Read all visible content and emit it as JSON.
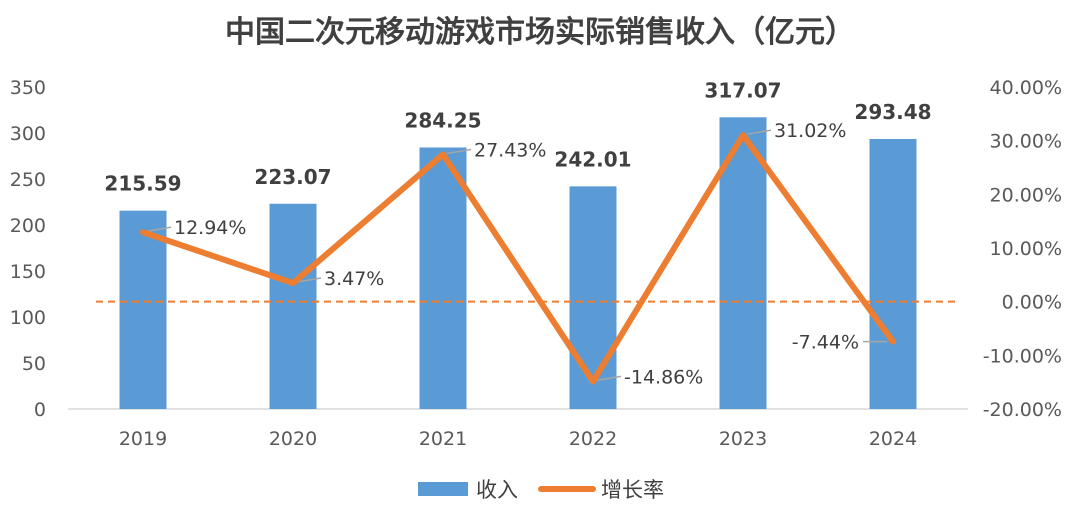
{
  "chart_data": {
    "type": "bar+line",
    "title": "中国二次元移动游戏市场实际销售收入（亿元）",
    "categories": [
      "2019",
      "2020",
      "2021",
      "2022",
      "2023",
      "2024"
    ],
    "series": [
      {
        "name": "收入",
        "type": "bar",
        "axis": "left",
        "values": [
          215.59,
          223.07,
          284.25,
          242.01,
          317.07,
          293.48
        ],
        "labels": [
          "215.59",
          "223.07",
          "284.25",
          "242.01",
          "317.07",
          "293.48"
        ],
        "color": "#5B9BD5"
      },
      {
        "name": "增长率",
        "type": "line",
        "axis": "right",
        "values": [
          12.94,
          3.47,
          27.43,
          -14.86,
          31.02,
          -7.44
        ],
        "labels": [
          "12.94%",
          "3.47%",
          "27.43%",
          "-14.86%",
          "31.02%",
          "-7.44%"
        ],
        "color": "#ED7D31"
      }
    ],
    "y_left": {
      "min": 0,
      "max": 350,
      "ticks": [
        "0",
        "50",
        "100",
        "150",
        "200",
        "250",
        "300",
        "350"
      ]
    },
    "y_right": {
      "min": -20,
      "max": 40,
      "ticks": [
        "-20.00%",
        "-10.00%",
        "0.00%",
        "10.00%",
        "20.00%",
        "30.00%",
        "40.00%"
      ]
    },
    "reference_line": {
      "value": 0,
      "axis": "right",
      "style": "dashed",
      "color": "#ED7D31"
    },
    "legend": {
      "position": "bottom",
      "items": [
        "收入",
        "增长率"
      ]
    },
    "grid": false
  }
}
